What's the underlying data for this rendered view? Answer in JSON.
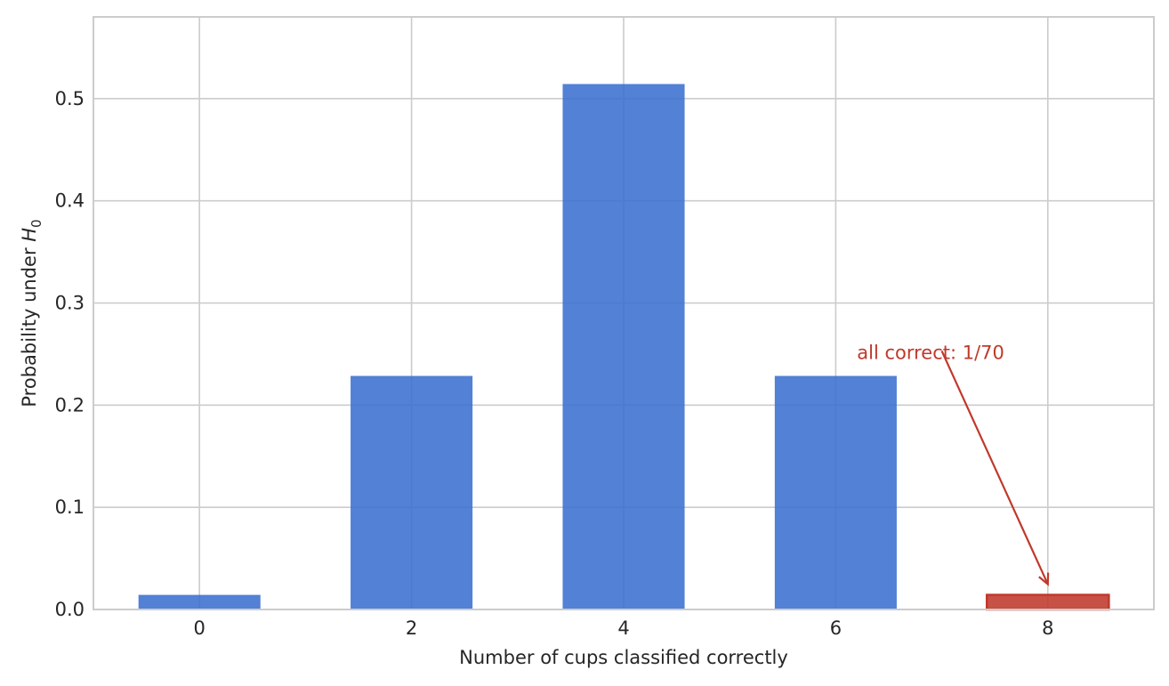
{
  "chart_data": {
    "type": "bar",
    "categories": [
      0,
      2,
      4,
      6,
      8
    ],
    "values": [
      0.0143,
      0.2286,
      0.5143,
      0.2286,
      0.0143
    ],
    "bar_colors": [
      "#3a6fcf",
      "#3a6fcf",
      "#3a6fcf",
      "#3a6fcf",
      "#c0392b"
    ],
    "xlabel": "Number of cups classified correctly",
    "ylabel_prefix": "Probability under ",
    "ylabel_symbol": "H",
    "ylabel_subscript": "0",
    "xlim": [
      -1,
      9
    ],
    "ylim": [
      0,
      0.58
    ],
    "xticks": [
      0,
      2,
      4,
      6,
      8
    ],
    "yticks": [
      0.0,
      0.1,
      0.2,
      0.3,
      0.4,
      0.5
    ],
    "grid": true,
    "annotation": {
      "text": "all correct: 1/70",
      "color": "#c0392b",
      "text_x": 6.2,
      "text_y": 0.245,
      "arrow_from": [
        7.0,
        0.24
      ],
      "arrow_to": [
        8.0,
        0.0143
      ]
    }
  }
}
